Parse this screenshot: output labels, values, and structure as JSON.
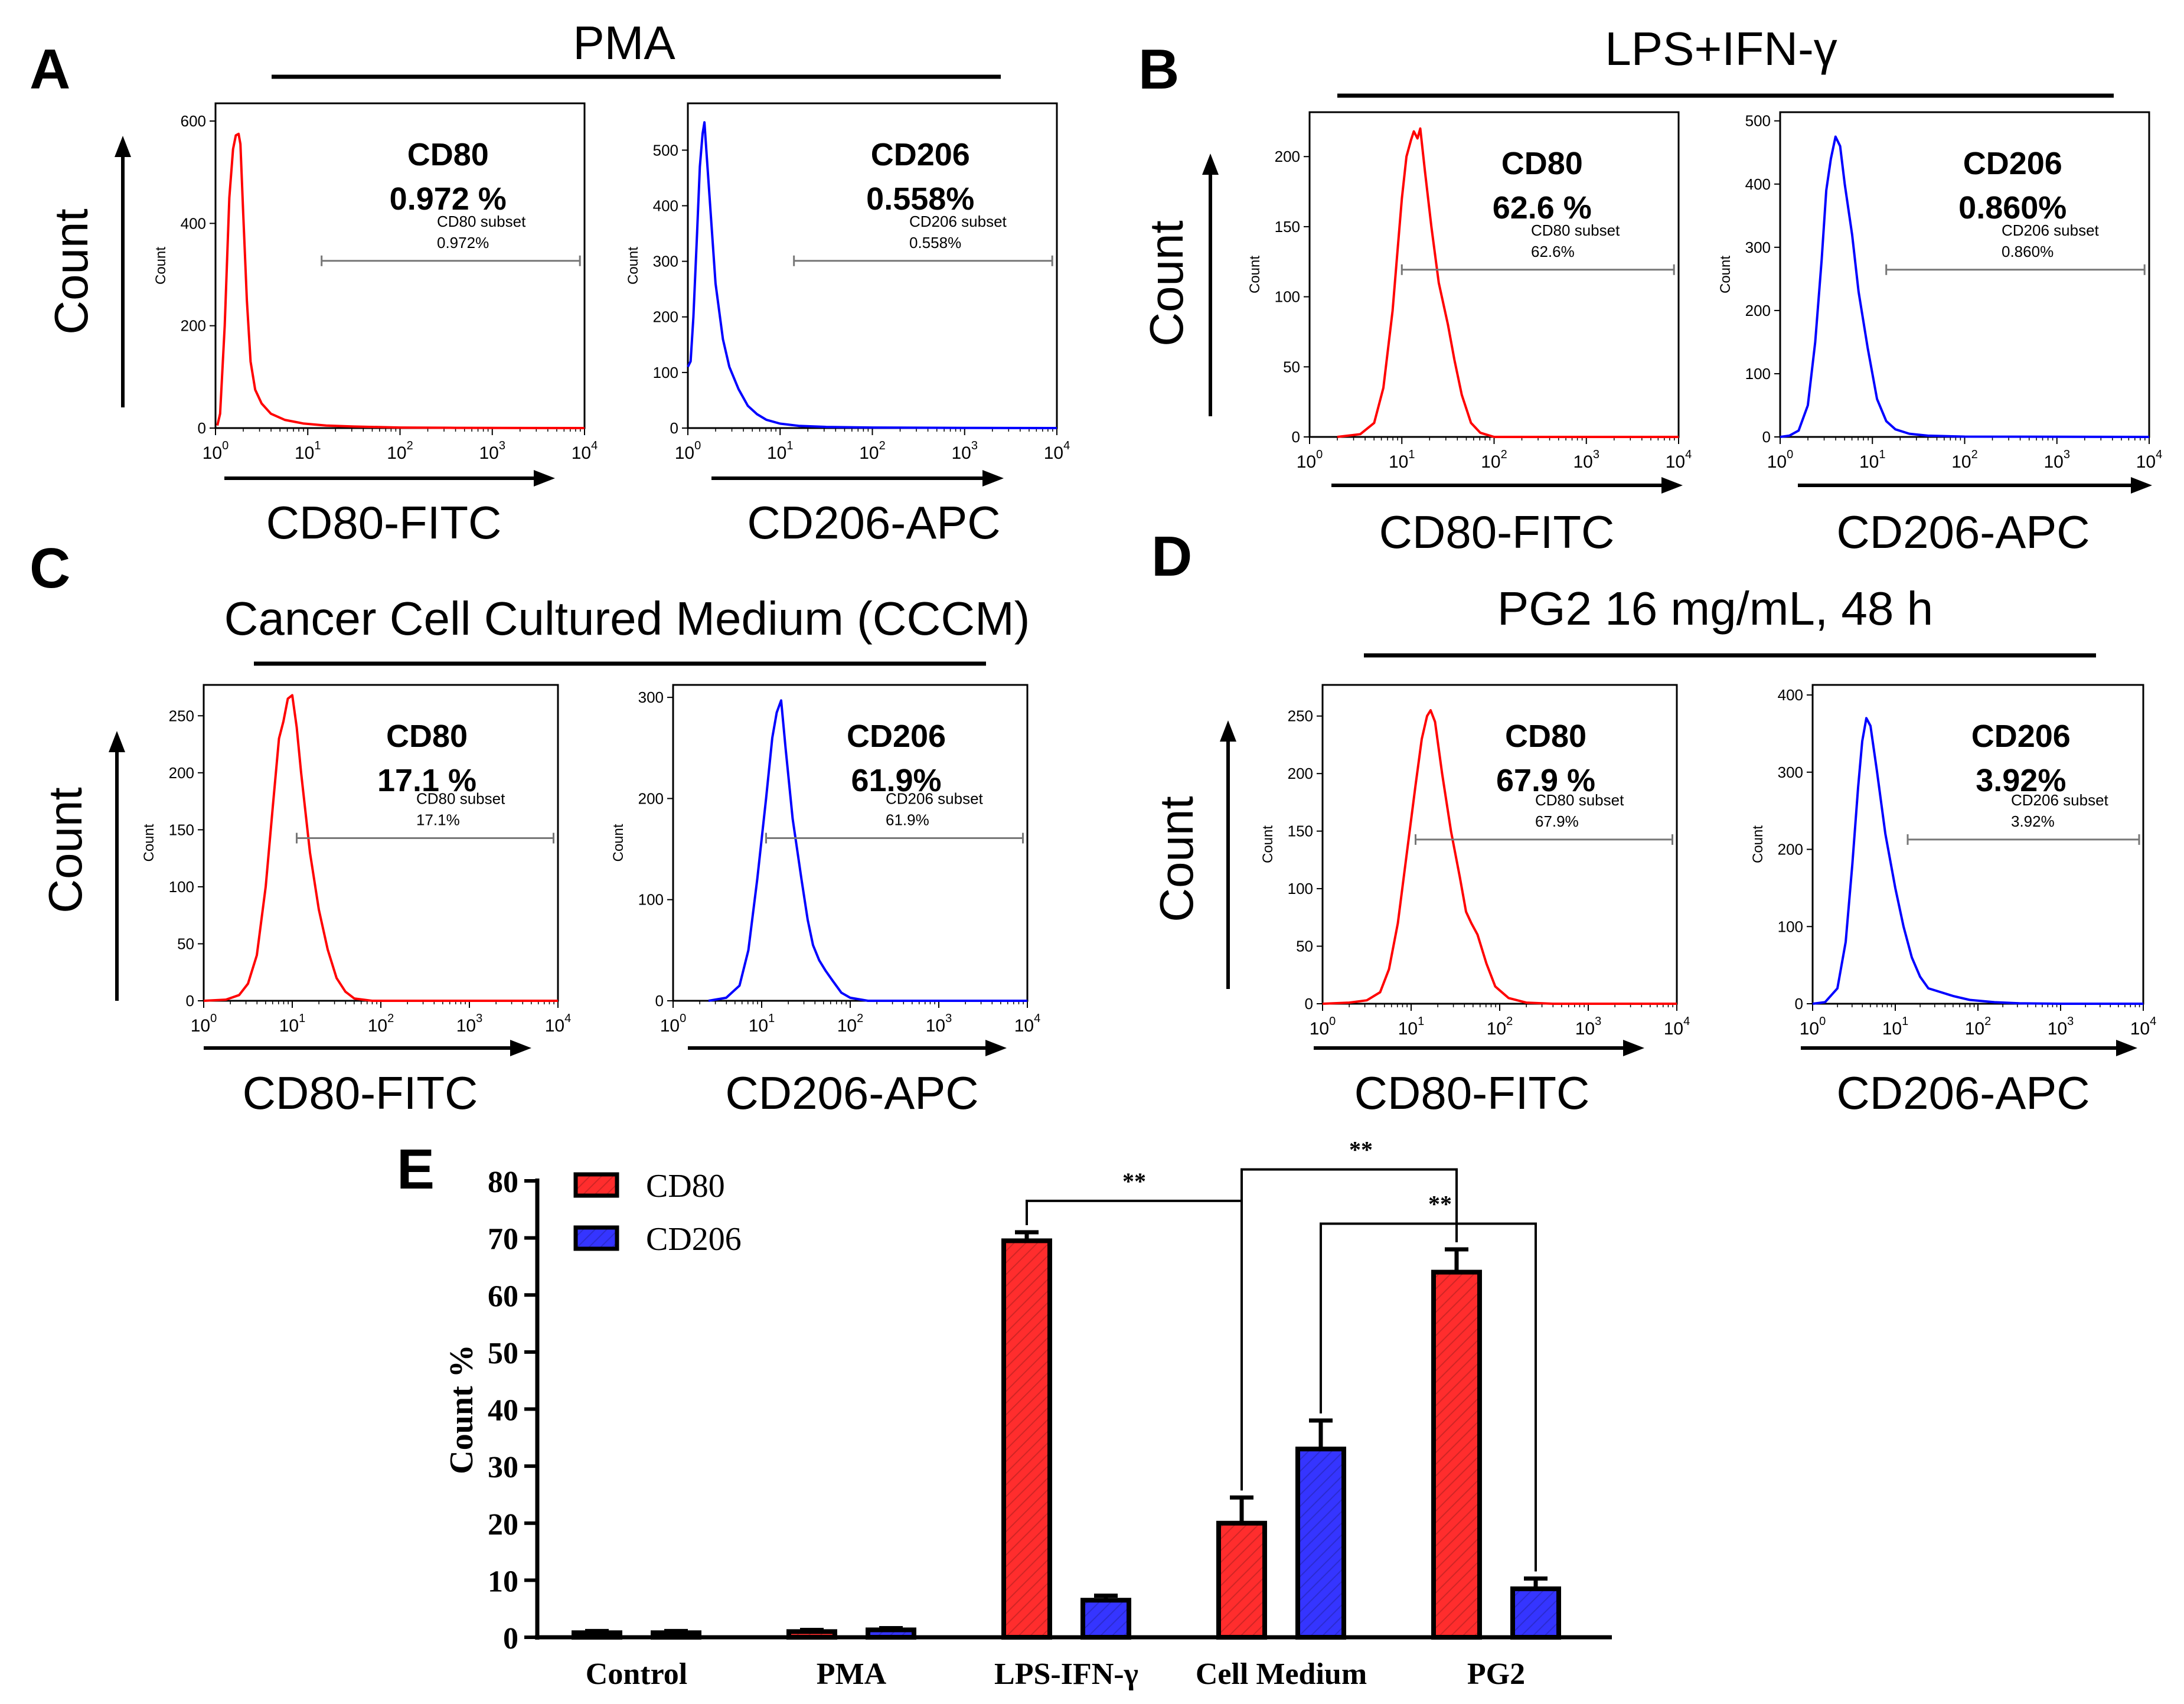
{
  "panels": [
    {
      "letter": "A",
      "treatment": "PMA",
      "count_axis_label": "Count",
      "histograms": [
        {
          "marker": "CD80",
          "percent": "0.972 %",
          "gate_label": "CD80 subset",
          "gate_percent": "0.972%",
          "x_label": "CD80-FITC",
          "color": "#ff0000",
          "y_title": "Count",
          "y_ticks": [
            0,
            200,
            400,
            600
          ],
          "y_max": 630,
          "curve": [
            [
              0.02,
              5
            ],
            [
              0.05,
              28
            ],
            [
              0.1,
              200
            ],
            [
              0.15,
              450
            ],
            [
              0.19,
              545
            ],
            [
              0.22,
              572
            ],
            [
              0.25,
              575
            ],
            [
              0.27,
              555
            ],
            [
              0.3,
              420
            ],
            [
              0.34,
              250
            ],
            [
              0.38,
              130
            ],
            [
              0.43,
              75
            ],
            [
              0.5,
              48
            ],
            [
              0.6,
              28
            ],
            [
              0.75,
              16
            ],
            [
              0.95,
              9
            ],
            [
              1.2,
              5
            ],
            [
              1.5,
              3
            ],
            [
              2,
              1
            ],
            [
              2.6,
              0.5
            ],
            [
              4,
              0
            ]
          ],
          "gate_log": [
            1.15,
            3.95
          ]
        },
        {
          "marker": "CD206",
          "percent": "0.558%",
          "gate_label": "CD206 subset",
          "gate_percent": "0.558%",
          "x_label": "CD206-APC",
          "color": "#0000ff",
          "y_title": "Count",
          "y_ticks": [
            0,
            100,
            200,
            300,
            400,
            500
          ],
          "y_max": 580,
          "curve": [
            [
              0,
              110
            ],
            [
              0.03,
              120
            ],
            [
              0.06,
              200
            ],
            [
              0.1,
              350
            ],
            [
              0.13,
              470
            ],
            [
              0.16,
              530
            ],
            [
              0.18,
              550
            ],
            [
              0.2,
              500
            ],
            [
              0.25,
              380
            ],
            [
              0.3,
              260
            ],
            [
              0.38,
              160
            ],
            [
              0.45,
              110
            ],
            [
              0.55,
              70
            ],
            [
              0.65,
              40
            ],
            [
              0.75,
              25
            ],
            [
              0.85,
              15
            ],
            [
              1,
              8
            ],
            [
              1.2,
              4
            ],
            [
              1.5,
              2
            ],
            [
              2,
              1
            ],
            [
              3,
              0.3
            ],
            [
              4,
              0
            ]
          ],
          "gate_log": [
            1.15,
            3.95
          ]
        }
      ]
    },
    {
      "letter": "B",
      "treatment": "LPS+IFN-γ",
      "count_axis_label": "Count",
      "histograms": [
        {
          "marker": "CD80",
          "percent": "62.6 %",
          "gate_label": "CD80 subset",
          "gate_percent": "62.6%",
          "x_label": "CD80-FITC",
          "color": "#ff0000",
          "y_title": "Count",
          "y_ticks": [
            0,
            50,
            100,
            150,
            200
          ],
          "y_max": 230,
          "curve": [
            [
              0.3,
              0
            ],
            [
              0.55,
              2
            ],
            [
              0.7,
              10
            ],
            [
              0.8,
              35
            ],
            [
              0.9,
              90
            ],
            [
              0.95,
              130
            ],
            [
              1,
              170
            ],
            [
              1.05,
              200
            ],
            [
              1.1,
              212
            ],
            [
              1.13,
              218
            ],
            [
              1.17,
              213
            ],
            [
              1.2,
              220
            ],
            [
              1.25,
              190
            ],
            [
              1.32,
              150
            ],
            [
              1.4,
              110
            ],
            [
              1.5,
              80
            ],
            [
              1.57,
              55
            ],
            [
              1.65,
              30
            ],
            [
              1.75,
              10
            ],
            [
              1.85,
              3
            ],
            [
              2,
              0
            ],
            [
              4,
              0
            ]
          ],
          "gate_log": [
            1.0,
            3.95
          ]
        },
        {
          "marker": "CD206",
          "percent": "0.860%",
          "gate_label": "CD206 subset",
          "gate_percent": "0.860%",
          "x_label": "CD206-APC",
          "color": "#0000ff",
          "y_title": "Count",
          "y_ticks": [
            0,
            100,
            200,
            300,
            400,
            500
          ],
          "y_max": 510,
          "curve": [
            [
              0,
              0
            ],
            [
              0.1,
              2
            ],
            [
              0.2,
              10
            ],
            [
              0.3,
              50
            ],
            [
              0.38,
              150
            ],
            [
              0.45,
              280
            ],
            [
              0.5,
              390
            ],
            [
              0.55,
              440
            ],
            [
              0.6,
              475
            ],
            [
              0.65,
              460
            ],
            [
              0.7,
              400
            ],
            [
              0.78,
              320
            ],
            [
              0.85,
              230
            ],
            [
              0.95,
              140
            ],
            [
              1.05,
              60
            ],
            [
              1.15,
              25
            ],
            [
              1.25,
              12
            ],
            [
              1.4,
              5
            ],
            [
              1.6,
              2
            ],
            [
              2,
              0.5
            ],
            [
              4,
              0
            ]
          ],
          "gate_log": [
            1.15,
            3.95
          ]
        }
      ]
    },
    {
      "letter": "C",
      "treatment": "Cancer Cell Cultured Medium (CCCM)",
      "count_axis_label": "Count",
      "histograms": [
        {
          "marker": "CD80",
          "percent": "17.1 %",
          "gate_label": "CD80 subset",
          "gate_percent": "17.1%",
          "x_label": "CD80-FITC",
          "color": "#ff0000",
          "y_title": "Count",
          "y_ticks": [
            0,
            50,
            100,
            150,
            200,
            250
          ],
          "y_max": 275,
          "curve": [
            [
              0,
              0
            ],
            [
              0.25,
              1
            ],
            [
              0.4,
              5
            ],
            [
              0.5,
              15
            ],
            [
              0.6,
              40
            ],
            [
              0.7,
              100
            ],
            [
              0.78,
              170
            ],
            [
              0.85,
              230
            ],
            [
              0.9,
              245
            ],
            [
              0.95,
              265
            ],
            [
              1,
              268
            ],
            [
              1.05,
              240
            ],
            [
              1.1,
              200
            ],
            [
              1.2,
              130
            ],
            [
              1.3,
              80
            ],
            [
              1.4,
              45
            ],
            [
              1.5,
              20
            ],
            [
              1.6,
              8
            ],
            [
              1.7,
              2
            ],
            [
              1.9,
              0
            ],
            [
              4,
              0
            ]
          ],
          "gate_log": [
            1.05,
            3.95
          ]
        },
        {
          "marker": "CD206",
          "percent": "61.9%",
          "gate_label": "CD206 subset",
          "gate_percent": "61.9%",
          "x_label": "CD206-APC",
          "color": "#0000ff",
          "y_title": "Count",
          "y_ticks": [
            0,
            100,
            200,
            300
          ],
          "y_max": 310,
          "curve": [
            [
              0.4,
              0
            ],
            [
              0.6,
              3
            ],
            [
              0.75,
              15
            ],
            [
              0.85,
              50
            ],
            [
              0.95,
              120
            ],
            [
              1.05,
              200
            ],
            [
              1.12,
              260
            ],
            [
              1.17,
              285
            ],
            [
              1.22,
              297
            ],
            [
              1.27,
              250
            ],
            [
              1.35,
              180
            ],
            [
              1.45,
              120
            ],
            [
              1.52,
              80
            ],
            [
              1.58,
              55
            ],
            [
              1.65,
              40
            ],
            [
              1.72,
              30
            ],
            [
              1.8,
              20
            ],
            [
              1.9,
              8
            ],
            [
              2,
              3
            ],
            [
              2.2,
              0
            ],
            [
              4,
              0
            ]
          ],
          "gate_log": [
            1.05,
            3.95
          ]
        }
      ]
    },
    {
      "letter": "D",
      "treatment": "PG2 16 mg/mL, 48 h",
      "count_axis_label": "Count",
      "histograms": [
        {
          "marker": "CD80",
          "percent": "67.9 %",
          "gate_label": "CD80 subset",
          "gate_percent": "67.9%",
          "x_label": "CD80-FITC",
          "color": "#ff0000",
          "y_title": "Count",
          "y_ticks": [
            0,
            50,
            100,
            150,
            200,
            250
          ],
          "y_max": 275,
          "curve": [
            [
              0,
              0
            ],
            [
              0.3,
              1
            ],
            [
              0.5,
              3
            ],
            [
              0.65,
              10
            ],
            [
              0.75,
              30
            ],
            [
              0.85,
              70
            ],
            [
              0.95,
              130
            ],
            [
              1.05,
              190
            ],
            [
              1.12,
              230
            ],
            [
              1.18,
              250
            ],
            [
              1.22,
              255
            ],
            [
              1.27,
              245
            ],
            [
              1.35,
              200
            ],
            [
              1.45,
              150
            ],
            [
              1.55,
              110
            ],
            [
              1.62,
              80
            ],
            [
              1.68,
              70
            ],
            [
              1.75,
              60
            ],
            [
              1.85,
              35
            ],
            [
              1.95,
              15
            ],
            [
              2.1,
              5
            ],
            [
              2.3,
              1
            ],
            [
              2.6,
              0
            ],
            [
              4,
              0
            ]
          ],
          "gate_log": [
            1.05,
            3.95
          ]
        },
        {
          "marker": "CD206",
          "percent": "3.92%",
          "gate_label": "CD206 subset",
          "gate_percent": "3.92%",
          "x_label": "CD206-APC",
          "color": "#0000ff",
          "y_title": "Count",
          "y_ticks": [
            0,
            100,
            200,
            300,
            400
          ],
          "y_max": 410,
          "curve": [
            [
              0,
              0
            ],
            [
              0.15,
              2
            ],
            [
              0.3,
              20
            ],
            [
              0.4,
              80
            ],
            [
              0.48,
              180
            ],
            [
              0.55,
              280
            ],
            [
              0.6,
              340
            ],
            [
              0.65,
              370
            ],
            [
              0.7,
              360
            ],
            [
              0.78,
              300
            ],
            [
              0.88,
              220
            ],
            [
              1,
              150
            ],
            [
              1.1,
              100
            ],
            [
              1.2,
              60
            ],
            [
              1.3,
              35
            ],
            [
              1.4,
              20
            ],
            [
              1.55,
              15
            ],
            [
              1.7,
              10
            ],
            [
              1.9,
              5
            ],
            [
              2.2,
              2
            ],
            [
              2.5,
              0.5
            ],
            [
              3,
              0
            ],
            [
              4,
              0
            ]
          ],
          "gate_log": [
            1.15,
            3.95
          ]
        }
      ]
    }
  ],
  "hist_axis": {
    "x_ticks_log": [
      0,
      1,
      2,
      3,
      4
    ]
  },
  "bar_panel": {
    "letter": "E"
  },
  "chart_data": {
    "type": "bar",
    "title": "",
    "xlabel": "",
    "ylabel": "Count %",
    "ylim": [
      0,
      80
    ],
    "yticks": [
      0,
      10,
      20,
      30,
      40,
      50,
      60,
      70,
      80
    ],
    "categories": [
      "Control",
      "PMA",
      "LPS-IFN-γ",
      "Cell Medium",
      "PG2"
    ],
    "series": [
      {
        "name": "CD80",
        "color": "#ff2d2d",
        "values": [
          0.8,
          1.0,
          69.5,
          20,
          64
        ],
        "errors": [
          0.3,
          0.3,
          1.5,
          4.5,
          4
        ]
      },
      {
        "name": "CD206",
        "color": "#3535ff",
        "values": [
          0.8,
          1.3,
          6.5,
          33,
          8.5
        ],
        "errors": [
          0.3,
          0.3,
          0.8,
          5,
          1.8
        ]
      }
    ],
    "legend_position": "top-left",
    "significance": [
      {
        "from": "LPS-IFN-γ CD80",
        "to": "Cell Medium CD80",
        "label": "**"
      },
      {
        "from": "Cell Medium CD80",
        "to": "PG2 CD80",
        "label": "**"
      },
      {
        "from": "Cell Medium CD206",
        "to": "PG2 CD206",
        "label": "**"
      }
    ]
  }
}
